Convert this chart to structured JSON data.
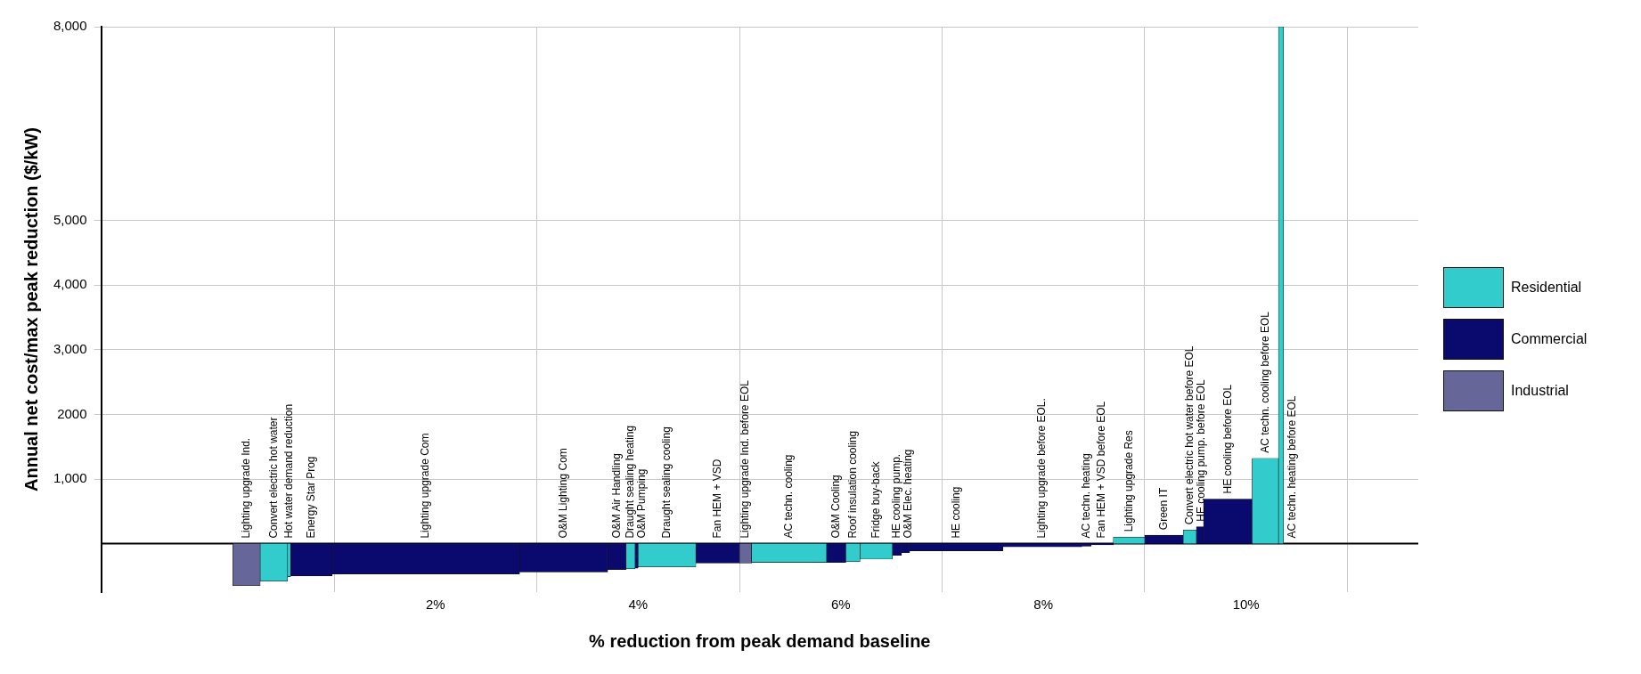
{
  "chart_data": {
    "type": "bar",
    "xlabel": "% reduction from peak demand baseline",
    "ylabel": "Annual net cost/max peak reduction ($/kW)",
    "series": [
      {
        "name": "Residential",
        "color": "#33cccc",
        "x": [
          0.405,
          0.555,
          3.925,
          4.285,
          5.49,
          6.12,
          6.35,
          8.845,
          9.445,
          10.19,
          10.345
        ],
        "values": [
          -580,
          -510,
          -390,
          -360,
          -290,
          -280,
          -240,
          100,
          210,
          1320,
          8000
        ],
        "value_labels": [
          "Convert electric hot water",
          "Hot water demand reduction",
          "Draught sealing heating",
          "Draught sealing cooling",
          "AC techn. cooling",
          "Roof insulation cooling",
          "Fridge buy-back",
          "Lighting upgrade Res",
          "Convert electric hot water before EOL",
          "AC techn. cooling before EOL",
          "AC techn. heating before EOL"
        ]
      },
      {
        "name": "Commercial",
        "color": "#0a0a6e",
        "x": [
          0.775,
          1.905,
          3.265,
          3.79,
          3.985,
          4.785,
          5.955,
          6.555,
          6.64,
          7.14,
          7.99,
          8.425,
          8.58,
          9.19,
          9.545,
          9.82
        ],
        "values": [
          -500,
          -470,
          -440,
          -400,
          -380,
          -300,
          -290,
          -180,
          -140,
          -110,
          -50,
          -40,
          -20,
          130,
          260,
          690
        ],
        "value_labels": [
          "Energy Star Prog",
          "Lighting upgrade Com",
          "O&M Lighting Com",
          "O&M Air Handling",
          "O&M Pumping",
          "Fan HEM + VSD",
          "O&M Cooling",
          "HE cooling pump.",
          "O&M Elec. heating",
          "HE cooling",
          "Lighting upgrade before EOL.",
          "AC techn. heating",
          "Fan HEM + VSD before EOL",
          "Green IT",
          "HE cooling pump. before EOL",
          "HE cooling before EOL"
        ]
      },
      {
        "name": "Industrial",
        "color": "#666699",
        "x": [
          0.135,
          5.06
        ],
        "values": [
          -650,
          -300
        ],
        "value_labels": [
          "Lighting upgrade Ind.",
          "Lighting upgrade Ind. before EOL"
        ]
      }
    ],
    "xlim": [
      0,
      10.4
    ],
    "xticks": [
      {
        "value": 2,
        "label": "2%"
      },
      {
        "value": 4,
        "label": "4%"
      },
      {
        "value": 6,
        "label": "6%"
      },
      {
        "value": 8,
        "label": "8%"
      },
      {
        "value": 10,
        "label": "10%"
      }
    ],
    "ylim": [
      -750,
      8000
    ],
    "yticks": [
      {
        "value": 1000,
        "label": "1,000"
      },
      2000,
      {
        "value": 3000,
        "label": "3,000"
      },
      {
        "value": 4000,
        "label": "4,000"
      },
      {
        "value": 5000,
        "label": "5,000"
      },
      {
        "value": 8000,
        "label": "8,000"
      }
    ],
    "grid": true,
    "legend": "right",
    "ref_lines": [
      {
        "axis": "y",
        "value": 0,
        "color": "#000000"
      }
    ]
  }
}
